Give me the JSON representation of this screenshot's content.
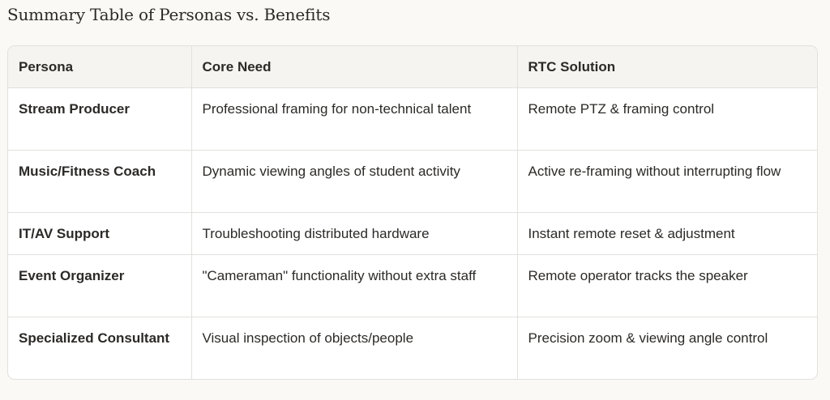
{
  "title": "Summary Table of Personas vs. Benefits",
  "table": {
    "headers": [
      "Persona",
      "Core Need",
      "RTC Solution"
    ],
    "rows": [
      [
        "Stream Producer",
        "Professional framing for non-technical talent",
        "Remote PTZ & framing control"
      ],
      [
        "Music/Fitness Coach",
        "Dynamic viewing angles of student activity",
        "Active re-framing without interrupting flow"
      ],
      [
        "IT/AV Support",
        "Troubleshooting distributed hardware",
        "Instant remote reset & adjustment"
      ],
      [
        "Event Organizer",
        "\"Cameraman\" functionality without extra staff",
        "Remote operator tracks the speaker"
      ],
      [
        "Specialized Consultant",
        "Visual inspection of objects/people",
        "Precision zoom & viewing angle control"
      ]
    ]
  }
}
